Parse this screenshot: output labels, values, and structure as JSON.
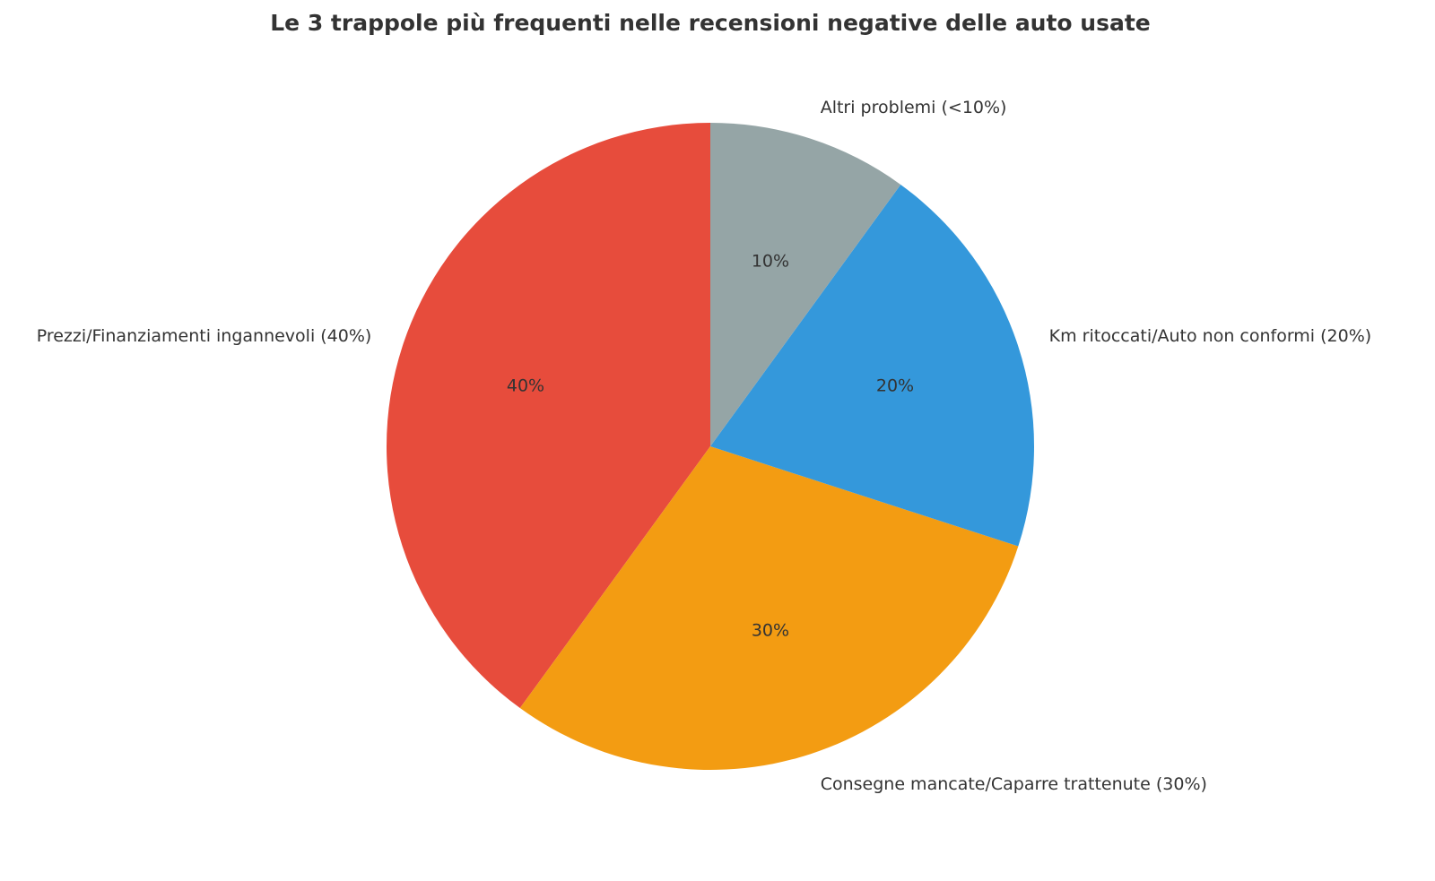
{
  "chart_data": {
    "type": "pie",
    "title": "Le 3 trappole più frequenti nelle recensioni negative delle auto usate",
    "categories": [
      "Prezzi/Finanziamenti ingannevoli (40%)",
      "Consegne mancate/Caparre trattenute (30%)",
      "Km ritoccati/Auto non conformi (20%)",
      "Altri problemi (<10%)"
    ],
    "values": [
      40,
      30,
      20,
      10
    ],
    "value_labels": [
      "40%",
      "30%",
      "20%",
      "10%"
    ],
    "colors": [
      "#e74c3c",
      "#f39c12",
      "#3498db",
      "#95a5a6"
    ]
  }
}
